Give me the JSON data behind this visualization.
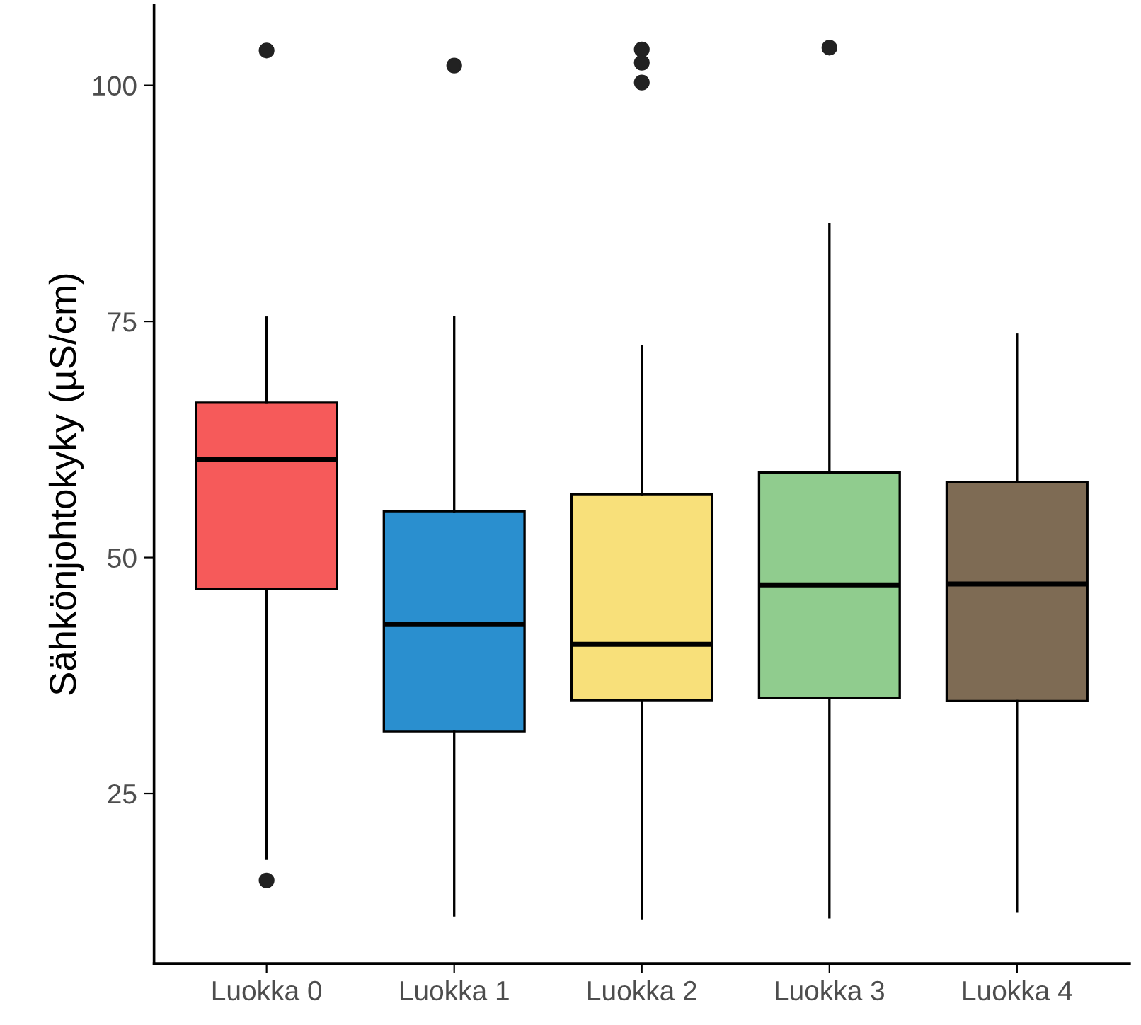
{
  "chart_data": {
    "type": "box",
    "ylabel": "Sähkönjohtokyky (µS/cm)",
    "categories": [
      "Luokka 0",
      "Luokka 1",
      "Luokka 2",
      "Luokka 3",
      "Luokka 4"
    ],
    "colors": [
      "#f65a5a",
      "#2a8fcf",
      "#f8e07a",
      "#90cc8e",
      "#7e6b54"
    ],
    "boxes": [
      {
        "low": 18.1,
        "q1": 46.7,
        "median": 60.4,
        "q3": 66.4,
        "high": 75.4,
        "outliers": [
          15.8,
          103.7
        ]
      },
      {
        "low": 12.1,
        "q1": 31.6,
        "median": 42.9,
        "q3": 54.9,
        "high": 75.4,
        "outliers": [
          102.1
        ]
      },
      {
        "low": 11.8,
        "q1": 34.9,
        "median": 40.8,
        "q3": 56.7,
        "high": 72.4,
        "outliers": [
          100.3,
          102.4,
          103.8
        ]
      },
      {
        "low": 11.9,
        "q1": 35.1,
        "median": 47.1,
        "q3": 59.0,
        "high": 85.3,
        "outliers": [
          104.0
        ]
      },
      {
        "low": 12.5,
        "q1": 34.8,
        "median": 47.2,
        "q3": 58.0,
        "high": 73.6
      }
    ],
    "ylim": [
      7,
      108.5
    ],
    "yticks": [
      25,
      50,
      75,
      100
    ],
    "grid": false,
    "legend": false
  }
}
